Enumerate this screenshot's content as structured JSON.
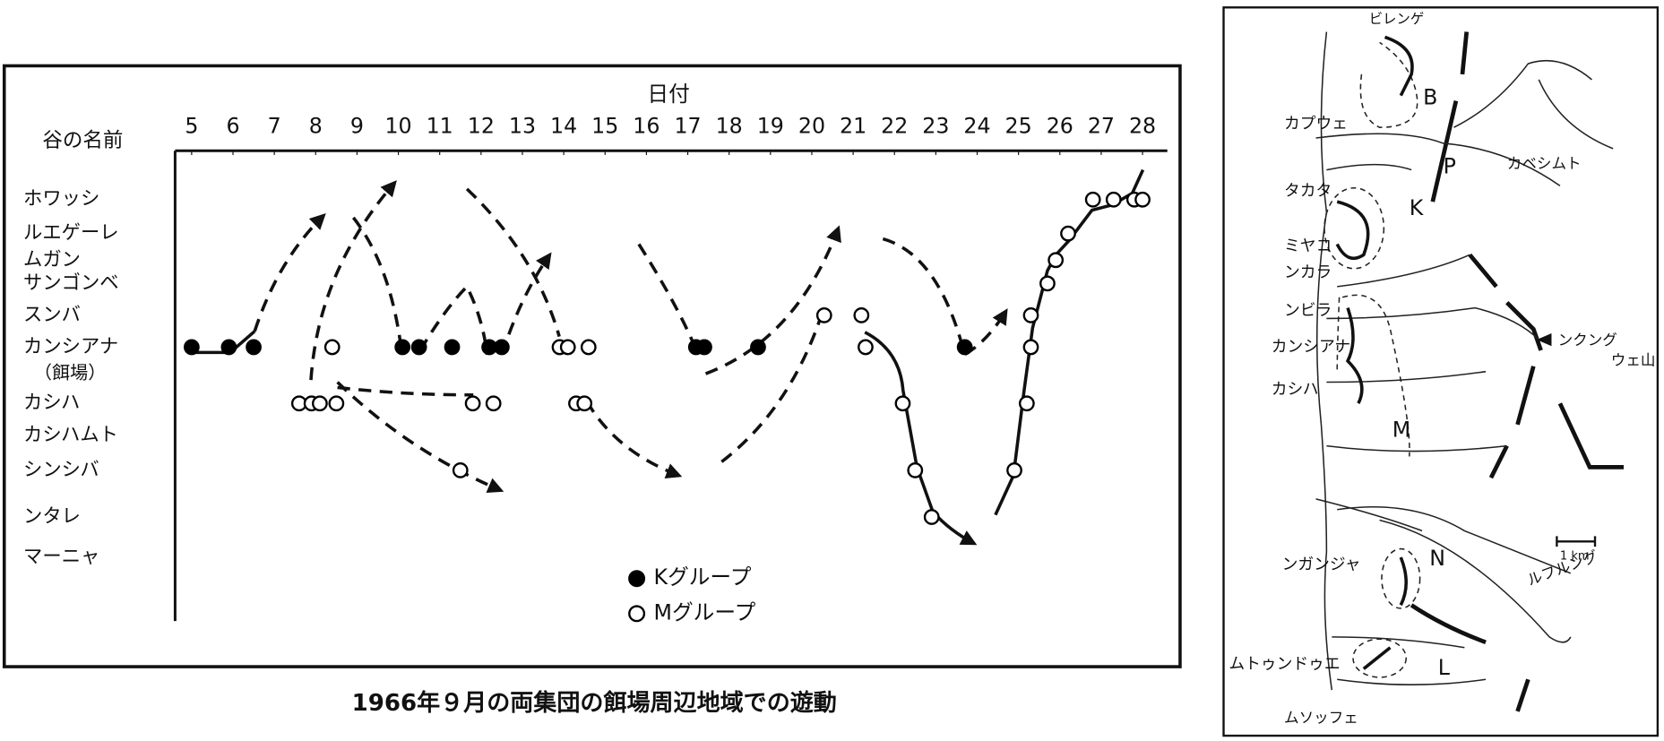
{
  "chart_data": {
    "type": "scatter",
    "x_label": "日付",
    "y_label": "谷の名前",
    "feeding_site_label": "（餌場）",
    "categories": [
      "ホワッシ",
      "ルエゲーレ",
      "ムガン",
      "サンゴンベ",
      "スンバ",
      "カンシアナ",
      "カシハ",
      "カシハムト",
      "シンシバ",
      "ンタレ",
      "マーニャ"
    ],
    "xlim": [
      4.6,
      28.6
    ],
    "xticks": [
      5,
      6,
      7,
      8,
      9,
      10,
      11,
      12,
      13,
      14,
      15,
      16,
      17,
      18,
      19,
      20,
      21,
      22,
      23,
      24,
      25,
      26,
      27,
      28
    ],
    "series": [
      {
        "name": "Kグループ",
        "color": "#000000",
        "filled": true,
        "x": [
          5,
          5.9,
          6.5,
          10.1,
          10.5,
          11.3,
          12.2,
          12.5,
          17.2,
          17.4,
          18.7,
          23.7
        ],
        "values": [
          "カンシアナ",
          "カンシアナ",
          "カンシアナ",
          "カンシアナ",
          "カンシアナ",
          "カンシアナ",
          "カンシアナ",
          "カンシアナ",
          "カンシアナ",
          "カンシアナ",
          "カンシアナ",
          "カンシアナ"
        ]
      },
      {
        "name": "Mグループ",
        "color": "#000000",
        "filled": false,
        "x": [
          7.6,
          7.9,
          8.1,
          8.4,
          8.5,
          11.8,
          12.3,
          11.5,
          13.9,
          14.1,
          14.6,
          14.3,
          14.5,
          20.3,
          21.2,
          21.3,
          22.2,
          22.5,
          22.9,
          24.9,
          25.2,
          25.3,
          25.3,
          25.7,
          25.9,
          26.2,
          26.8,
          27.3,
          27.8,
          28.0
        ],
        "values": [
          "カシハ",
          "カシハ",
          "カシハ",
          "カンシアナ",
          "カシハ",
          "カシハ",
          "カシハ",
          "シンシバ",
          "カンシアナ",
          "カンシアナ",
          "カンシアナ",
          "カシハ",
          "カシハ",
          "スンバ",
          "スンバ",
          "カンシアナ",
          "カシハ",
          "シンシバ",
          "ンタレ",
          "シンシバ",
          "カシハ",
          "カンシアナ",
          "スンバ",
          "サンゴンベ",
          "ムガン",
          "ルエゲーレ",
          "ホワッシ",
          "ホワッシ",
          "ホワッシ",
          "ホワッシ"
        ]
      }
    ]
  },
  "caption": "1966年９月の両集団の餌場周辺地域での遊動",
  "map": {
    "labels": [
      "ビレンゲ",
      "B",
      "カプウェ",
      "P",
      "カベシムト",
      "タカタ",
      "K",
      "ミヤコ",
      "ンカラ",
      "ンビラ",
      "カンシアナ",
      "ンクング",
      "ウェ山",
      "カシハ",
      "M",
      "1 km",
      "ンガンジャ",
      "N",
      "ルフルング",
      "ムトゥンドゥエ",
      "L",
      "ムソッフェ"
    ]
  }
}
